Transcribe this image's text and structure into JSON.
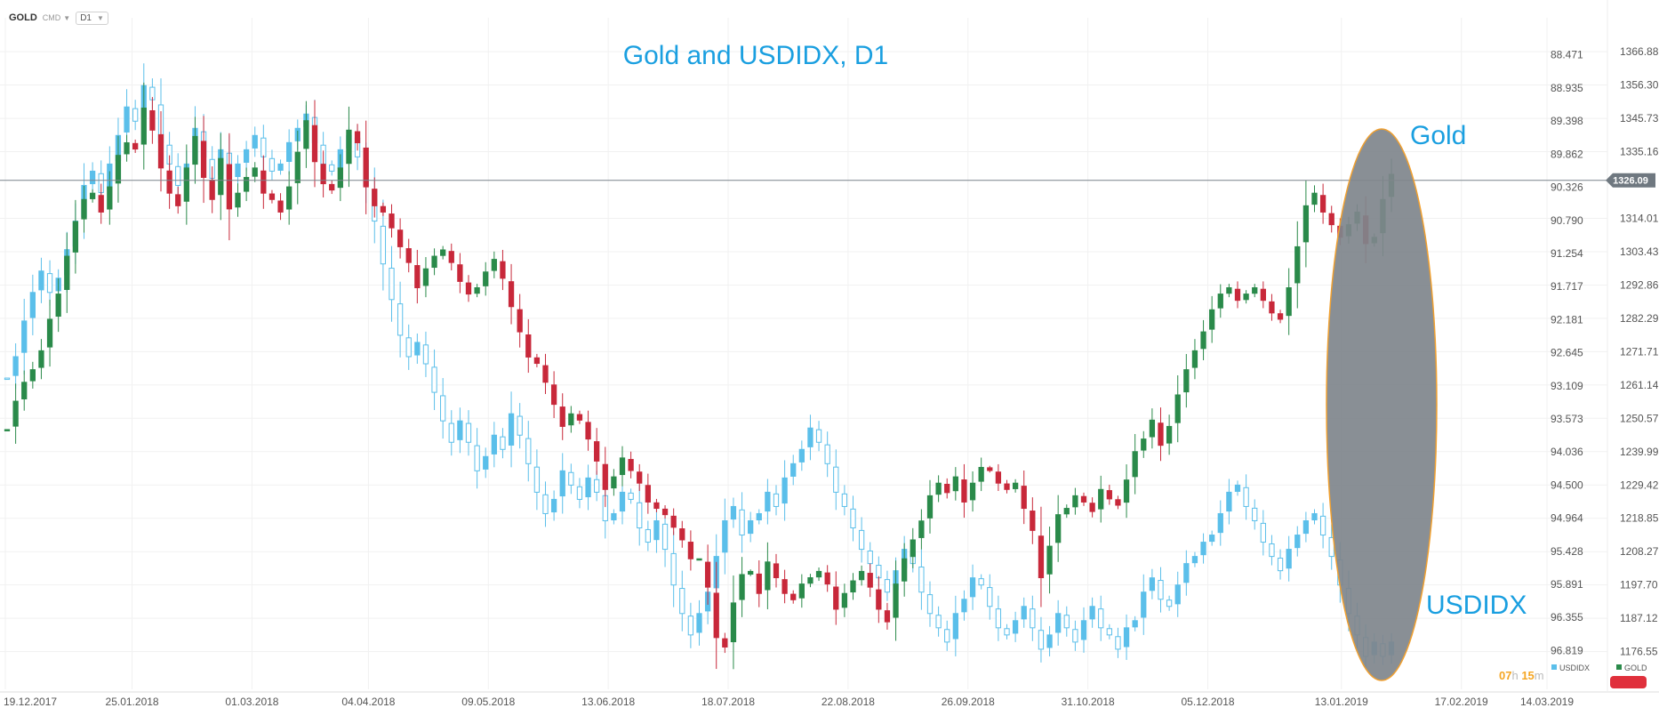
{
  "toolbar": {
    "symbol": "GOLD",
    "source": "CMD",
    "timeframe": "D1"
  },
  "countdown": {
    "hours": "07",
    "hours_unit": "h",
    "minutes": "15",
    "minutes_unit": "m"
  },
  "colors": {
    "up": "#2a8a4a",
    "down": "#c8283a",
    "usdidx": "#5bbfea",
    "annotation": "#1a9fe0",
    "ellipse_fill": "#7f858c",
    "ellipse_stroke": "#f0a030",
    "price_tag": "#6f7880",
    "legend_red": "#e0303c"
  },
  "chart_data": {
    "type": "candlestick",
    "title": "Gold and USDIDX, D1",
    "annotations": [
      "Gold",
      "USDIDX"
    ],
    "x_ticks": [
      "19.12.2017",
      "25.01.2018",
      "01.03.2018",
      "04.04.2018",
      "09.05.2018",
      "13.06.2018",
      "18.07.2018",
      "22.08.2018",
      "26.09.2018",
      "31.10.2018",
      "05.12.2018",
      "13.01.2019",
      "17.02.2019",
      "14.03.2019"
    ],
    "x_range": [
      "19.12.2017",
      "14.03.2019"
    ],
    "y_gold_ticks": [
      "1366.88",
      "1356.30",
      "1345.73",
      "1335.16",
      "1314.01",
      "1303.43",
      "1292.86",
      "1282.29",
      "1271.71",
      "1261.14",
      "1250.57",
      "1239.99",
      "1229.42",
      "1218.85",
      "1208.27",
      "1197.70",
      "1187.12",
      "1176.55"
    ],
    "y_gold_range": [
      1166,
      1372
    ],
    "y_usdidx_ticks": [
      "88.471",
      "88.935",
      "89.398",
      "89.862",
      "90.326",
      "90.790",
      "91.254",
      "91.717",
      "92.181",
      "92.645",
      "93.109",
      "93.573",
      "94.036",
      "94.500",
      "94.964",
      "95.428",
      "95.891",
      "96.355",
      "96.819"
    ],
    "y_usdidx_range": [
      88.2,
      97.3
    ],
    "y_usdidx_inverted": true,
    "current_price": "1326.09",
    "current_price_value": 1326.09,
    "legend": [
      {
        "name": "USDIDX"
      },
      {
        "name": "GOLD"
      }
    ],
    "series": [
      {
        "name": "GOLD",
        "style": "candles",
        "closes": [
          1247,
          1256,
          1262,
          1266,
          1272,
          1282,
          1290,
          1302,
          1313,
          1320,
          1322,
          1316,
          1324,
          1334,
          1338,
          1336,
          1349,
          1342,
          1330,
          1322,
          1318,
          1330,
          1340,
          1327,
          1320,
          1333,
          1317,
          1322,
          1327,
          1330,
          1322,
          1320,
          1316,
          1324,
          1335,
          1345,
          1332,
          1325,
          1323,
          1330,
          1342,
          1338,
          1324,
          1318,
          1316,
          1311,
          1305,
          1300,
          1292,
          1298,
          1302,
          1304,
          1300,
          1294,
          1290,
          1292,
          1297,
          1301,
          1295,
          1286,
          1278,
          1270,
          1268,
          1262,
          1255,
          1248,
          1252,
          1250,
          1244,
          1237,
          1228,
          1232,
          1238,
          1234,
          1230,
          1224,
          1222,
          1220,
          1216,
          1212,
          1206,
          1206,
          1197,
          1181,
          1178,
          1192,
          1201,
          1202,
          1195,
          1205,
          1200,
          1195,
          1193,
          1198,
          1200,
          1202,
          1198,
          1190,
          1195,
          1199,
          1202,
          1197,
          1190,
          1186,
          1198,
          1206,
          1212,
          1218,
          1226,
          1230,
          1227,
          1232,
          1224,
          1230,
          1235,
          1234,
          1230,
          1228,
          1230,
          1222,
          1215,
          1200,
          1210,
          1220,
          1222,
          1226,
          1224,
          1221,
          1228,
          1225,
          1223,
          1231,
          1240,
          1244,
          1250,
          1242,
          1248,
          1258,
          1266,
          1272,
          1278,
          1285,
          1290,
          1292,
          1288,
          1290,
          1292,
          1288,
          1284,
          1282,
          1292,
          1305,
          1318,
          1322,
          1316,
          1312,
          1308,
          1312,
          1316,
          1306,
          1308,
          1320,
          1328
        ]
      },
      {
        "name": "USDIDX",
        "style": "hollow-candles",
        "closes": [
          93.0,
          92.7,
          92.2,
          91.8,
          91.5,
          91.8,
          91.6,
          91.2,
          90.8,
          90.3,
          90.1,
          90.4,
          90.0,
          89.6,
          89.2,
          89.4,
          88.9,
          89.1,
          89.7,
          90.0,
          90.3,
          90.0,
          89.5,
          89.9,
          90.2,
          89.8,
          90.2,
          90.0,
          89.8,
          89.6,
          89.9,
          90.1,
          90.0,
          89.7,
          89.5,
          89.3,
          89.7,
          90.0,
          90.1,
          89.8,
          89.6,
          89.9,
          90.3,
          90.8,
          91.4,
          91.9,
          92.4,
          92.7,
          92.5,
          92.8,
          93.2,
          93.6,
          93.9,
          93.6,
          93.9,
          94.3,
          94.1,
          93.8,
          94.0,
          93.5,
          93.8,
          94.2,
          94.6,
          94.9,
          94.7,
          94.3,
          94.5,
          94.7,
          94.4,
          94.6,
          95.0,
          94.9,
          94.6,
          94.7,
          95.1,
          95.3,
          95.0,
          95.4,
          95.9,
          96.3,
          96.6,
          96.3,
          96.0,
          95.5,
          95.0,
          94.8,
          95.2,
          95.0,
          94.9,
          94.6,
          94.8,
          94.4,
          94.2,
          94.0,
          93.7,
          93.9,
          94.2,
          94.6,
          94.8,
          95.1,
          95.4,
          95.6,
          95.8,
          96.0,
          95.7,
          95.4,
          95.6,
          96.0,
          96.3,
          96.5,
          96.7,
          96.3,
          96.1,
          95.8,
          95.9,
          96.2,
          96.5,
          96.6,
          96.4,
          96.2,
          96.5,
          96.8,
          96.6,
          96.3,
          96.5,
          96.7,
          96.4,
          96.2,
          96.5,
          96.6,
          96.8,
          96.5,
          96.4,
          96.0,
          95.8,
          96.1,
          96.2,
          95.9,
          95.6,
          95.5,
          95.3,
          95.2,
          94.9,
          94.6,
          94.5,
          94.8,
          95.0,
          95.3,
          95.5,
          95.7,
          95.4,
          95.2,
          95.0,
          94.9,
          95.2,
          95.5,
          95.9,
          96.3,
          96.6,
          96.9,
          96.7,
          96.9,
          96.7
        ]
      }
    ]
  }
}
